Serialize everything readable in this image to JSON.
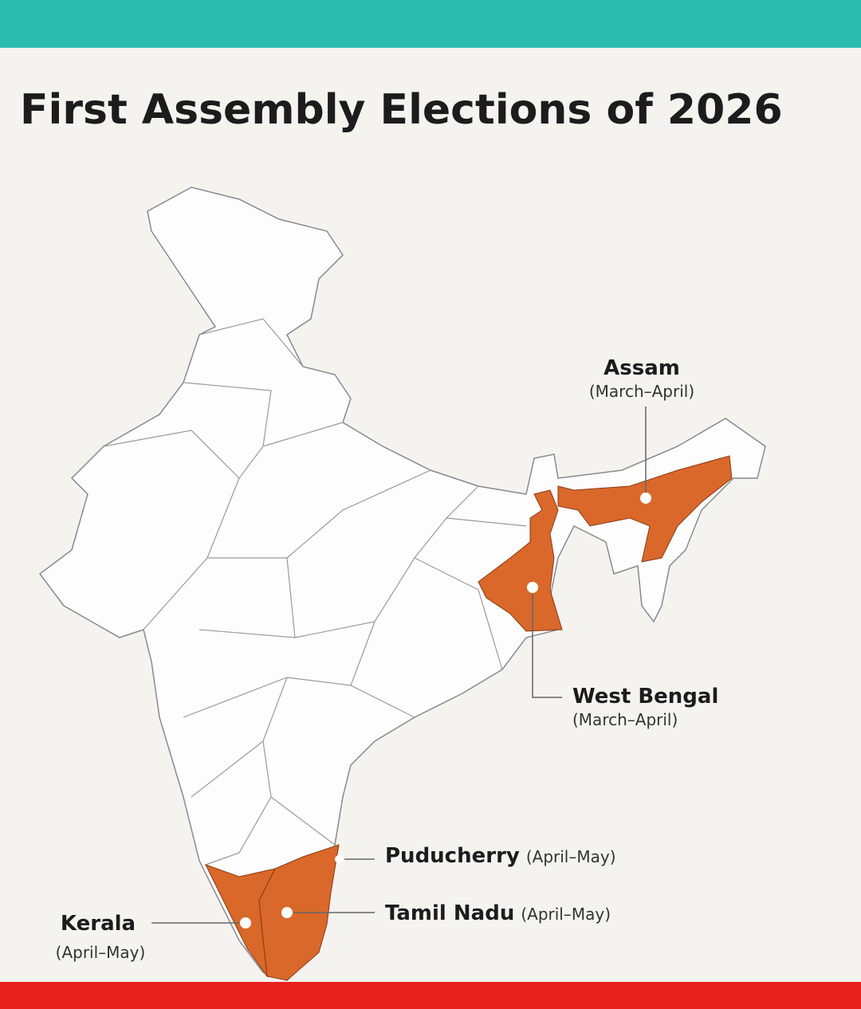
{
  "header": {
    "title": "First Assembly Elections of 2026"
  },
  "labels": [
    {
      "name": "Assam",
      "period": "(March–April)"
    },
    {
      "name": "West Bengal",
      "period": "(March–April)"
    },
    {
      "name": "Puducherry",
      "period": "(April–May)"
    },
    {
      "name": "Tamil Nadu",
      "period": "(April–May)"
    },
    {
      "name": "Kerala",
      "period": "(April–May)"
    }
  ]
}
